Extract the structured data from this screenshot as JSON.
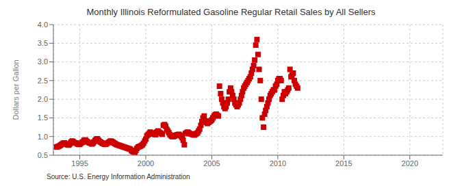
{
  "chart_data": {
    "type": "scatter",
    "title": "Monthly Illinois Reformulated Gasoline Regular Retail Sales by All Sellers",
    "ylabel": "Dollars per Gallon",
    "source": "Source: U.S. Energy Information Administration",
    "color": "#cc0000",
    "marker": "square",
    "grid": true,
    "xlim": [
      1993.0,
      2022.5
    ],
    "ylim": [
      0.5,
      4.0
    ],
    "xticks": [
      1995,
      2000,
      2005,
      2010,
      2015,
      2020
    ],
    "yticks": [
      0.5,
      {
        "value": 1.0,
        "label": "1.0"
      },
      1.5,
      {
        "value": 2.0,
        "label": "2.0"
      },
      2.5,
      {
        "value": 3.0,
        "label": "3.0"
      },
      3.5,
      {
        "value": 4.0,
        "label": "4.0"
      }
    ],
    "x": [
      1993.25,
      1993.33,
      1993.42,
      1993.5,
      1993.58,
      1993.67,
      1993.75,
      1993.83,
      1993.92,
      1994.0,
      1994.08,
      1994.17,
      1994.25,
      1994.33,
      1994.42,
      1994.5,
      1994.58,
      1994.67,
      1994.75,
      1994.83,
      1994.92,
      1995.0,
      1995.08,
      1995.17,
      1995.25,
      1995.33,
      1995.42,
      1995.5,
      1995.58,
      1995.67,
      1995.75,
      1995.83,
      1995.92,
      1996.0,
      1996.08,
      1996.17,
      1996.25,
      1996.33,
      1996.42,
      1996.5,
      1996.58,
      1996.67,
      1996.75,
      1996.83,
      1996.92,
      1997.0,
      1997.08,
      1997.17,
      1997.25,
      1997.33,
      1997.42,
      1997.5,
      1997.58,
      1997.67,
      1997.75,
      1997.83,
      1997.92,
      1998.0,
      1998.08,
      1998.17,
      1998.25,
      1998.33,
      1998.42,
      1998.5,
      1998.58,
      1998.67,
      1998.75,
      1998.83,
      1998.92,
      1999.0,
      1999.08,
      1999.17,
      1999.25,
      1999.33,
      1999.42,
      1999.5,
      1999.58,
      1999.67,
      1999.75,
      1999.83,
      1999.92,
      2000.0,
      2000.08,
      2000.17,
      2000.25,
      2000.33,
      2000.42,
      2000.5,
      2000.58,
      2000.67,
      2000.75,
      2000.83,
      2000.92,
      2001.0,
      2001.08,
      2001.17,
      2001.25,
      2001.33,
      2001.42,
      2001.5,
      2001.58,
      2001.67,
      2001.75,
      2001.83,
      2001.92,
      2002.0,
      2002.08,
      2002.17,
      2002.25,
      2002.33,
      2002.42,
      2002.5,
      2002.58,
      2002.67,
      2002.75,
      2002.83,
      2002.92,
      2003.0,
      2003.08,
      2003.17,
      2003.25,
      2003.33,
      2003.42,
      2003.5,
      2003.58,
      2003.67,
      2003.75,
      2003.83,
      2003.92,
      2004.0,
      2004.08,
      2004.17,
      2004.25,
      2004.33,
      2004.42,
      2004.5,
      2004.58,
      2004.67,
      2004.75,
      2004.83,
      2004.92,
      2005.0,
      2005.08,
      2005.17,
      2005.25,
      2005.33,
      2005.42,
      2005.5,
      2005.58,
      2005.67,
      2005.75,
      2005.83,
      2005.92,
      2006.0,
      2006.08,
      2006.17,
      2006.25,
      2006.33,
      2006.42,
      2006.5,
      2006.58,
      2006.67,
      2006.75,
      2006.83,
      2006.92,
      2007.0,
      2007.08,
      2007.17,
      2007.25,
      2007.33,
      2007.42,
      2007.5,
      2007.58,
      2007.67,
      2007.75,
      2007.83,
      2007.92,
      2008.0,
      2008.08,
      2008.17,
      2008.25,
      2008.33,
      2008.42,
      2008.5,
      2008.58,
      2008.67,
      2008.75,
      2008.83,
      2008.92,
      2009.0,
      2009.08,
      2009.17,
      2009.25,
      2009.33,
      2009.42,
      2009.5,
      2009.58,
      2009.67,
      2009.75,
      2009.83,
      2009.92,
      2010.0,
      2010.08,
      2010.17,
      2010.25,
      2010.33,
      2010.42,
      2010.5,
      2010.58,
      2010.67,
      2010.75,
      2010.83,
      2010.92,
      2011.0,
      2011.08,
      2011.17,
      2011.25,
      2011.33,
      2011.42,
      2011.5
    ],
    "values": [
      0.72,
      0.73,
      0.74,
      0.76,
      0.78,
      0.8,
      0.82,
      0.83,
      0.81,
      0.79,
      0.78,
      0.77,
      0.8,
      0.85,
      0.88,
      0.86,
      0.84,
      0.83,
      0.82,
      0.8,
      0.79,
      0.79,
      0.82,
      0.84,
      0.86,
      0.9,
      0.91,
      0.88,
      0.86,
      0.84,
      0.83,
      0.82,
      0.8,
      0.82,
      0.86,
      0.9,
      0.93,
      0.94,
      0.9,
      0.87,
      0.85,
      0.83,
      0.81,
      0.8,
      0.79,
      0.8,
      0.82,
      0.84,
      0.86,
      0.88,
      0.87,
      0.85,
      0.83,
      0.81,
      0.79,
      0.78,
      0.77,
      0.76,
      0.75,
      0.74,
      0.73,
      0.72,
      0.71,
      0.7,
      0.69,
      0.68,
      0.67,
      0.66,
      0.62,
      0.6,
      0.59,
      0.58,
      0.63,
      0.68,
      0.72,
      0.73,
      0.74,
      0.76,
      0.78,
      0.82,
      0.88,
      0.93,
      1.02,
      1.05,
      1.08,
      1.12,
      1.1,
      1.08,
      1.07,
      1.06,
      1.05,
      1.12,
      1.15,
      1.12,
      1.1,
      1.08,
      1.06,
      1.3,
      1.32,
      1.28,
      1.2,
      1.15,
      1.1,
      1.05,
      1.02,
      1.0,
      1.0,
      1.01,
      1.03,
      1.04,
      1.05,
      1.06,
      1.04,
      1.01,
      0.97,
      0.9,
      0.78,
      1.08,
      1.1,
      1.12,
      1.1,
      1.08,
      1.07,
      1.06,
      1.05,
      1.04,
      1.06,
      1.08,
      1.1,
      1.15,
      1.2,
      1.3,
      1.4,
      1.5,
      1.55,
      1.42,
      1.38,
      1.35,
      1.38,
      1.4,
      1.42,
      1.45,
      1.5,
      1.55,
      1.58,
      1.6,
      1.57,
      1.55,
      2.35,
      2.15,
      2.0,
      1.9,
      1.8,
      1.75,
      1.8,
      1.9,
      2.0,
      2.2,
      2.3,
      2.2,
      2.1,
      2.0,
      1.9,
      1.85,
      1.8,
      1.85,
      1.9,
      2.0,
      2.1,
      2.2,
      2.3,
      2.35,
      2.4,
      2.45,
      2.5,
      2.55,
      2.6,
      2.7,
      2.8,
      2.9,
      3.05,
      3.45,
      3.6,
      3.2,
      2.8,
      2.5,
      2.0,
      1.5,
      1.25,
      1.6,
      1.7,
      1.8,
      1.9,
      2.0,
      2.1,
      2.15,
      2.2,
      2.25,
      2.25,
      2.35,
      2.4,
      2.5,
      2.55,
      2.55,
      2.5,
      2.0,
      2.1,
      2.2,
      2.15,
      2.2,
      2.25,
      2.3,
      2.8,
      2.6,
      2.65,
      2.7,
      2.5,
      2.4,
      2.35,
      2.3
    ]
  }
}
